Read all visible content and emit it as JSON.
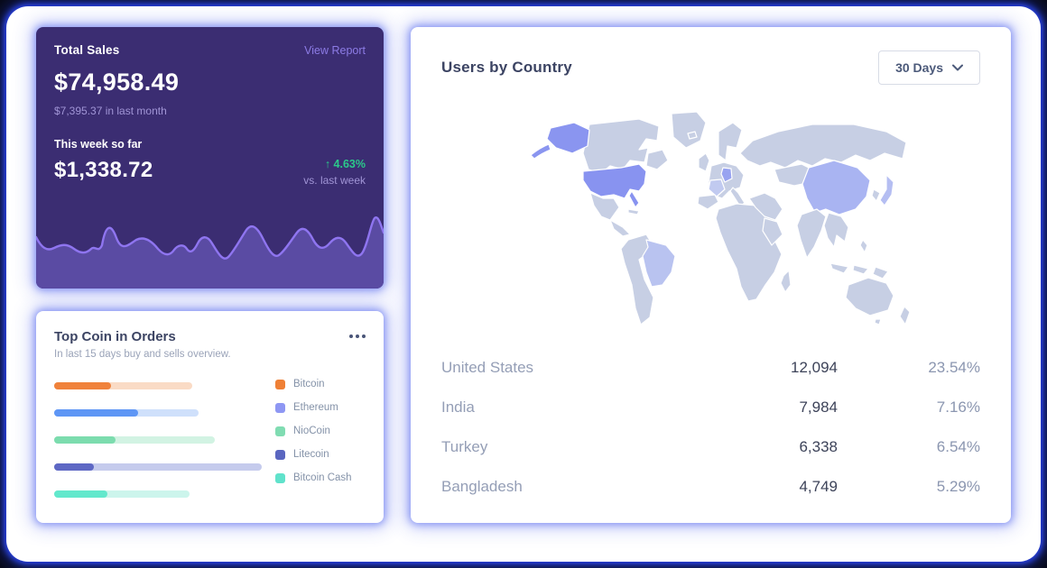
{
  "page": {
    "background": "#06070f",
    "glow_color": "#2b46f0",
    "canvas_background": "#ffffff"
  },
  "sales_card": {
    "title": "Total Sales",
    "view_report": "View Report",
    "total": "$74,958.49",
    "last_month_note": "$7,395.37 in last month",
    "week_label": "This week so far",
    "week_total": "$1,338.72",
    "delta_arrow": "↑",
    "delta": "4.63%",
    "delta_note": "vs. last week",
    "colors": {
      "bg": "#3b2d72",
      "line": "#8f75f0",
      "area": "#5a4ba3",
      "positive": "#2bc98a",
      "muted": "#a195d6",
      "link": "#8d7ce6"
    }
  },
  "coins_card": {
    "title": "Top Coin in Orders",
    "subtitle": "In last 15 days buy and sells overview.",
    "menu_icon": "ellipsis-icon",
    "chart": {
      "type": "bar",
      "orientation": "horizontal",
      "note": "unlabeled progress-style bars; widths measured in px from screenshot",
      "bars": [
        {
          "label": "Bitcoin",
          "fill": "#f0823b",
          "track": "#fadbc5",
          "track_w": 153,
          "fill_w": 63
        },
        {
          "label": "Ethereum",
          "fill": "#5e96f5",
          "track": "#cfe0fb",
          "track_w": 160,
          "fill_w": 93
        },
        {
          "label": "NioCoin",
          "fill": "#7cdcae",
          "track": "#d2f3e3",
          "track_w": 178,
          "fill_w": 68
        },
        {
          "label": "Litecoin",
          "fill": "#5e68c4",
          "track": "#c5cbed",
          "track_w": 230,
          "fill_w": 44
        },
        {
          "label": "Bitcoin Cash",
          "fill": "#62e8cc",
          "track": "#ccf5ec",
          "track_w": 150,
          "fill_w": 59
        }
      ]
    },
    "legend": [
      {
        "label": "Bitcoin",
        "color": "#ef8036"
      },
      {
        "label": "Ethereum",
        "color": "#8e97f3"
      },
      {
        "label": "NioCoin",
        "color": "#80dcb2"
      },
      {
        "label": "Litecoin",
        "color": "#5a66c0"
      },
      {
        "label": "Bitcoin Cash",
        "color": "#60e2cb"
      }
    ]
  },
  "map_card": {
    "title": "Users by Country",
    "range_label": "30 Days",
    "rows": [
      {
        "country": "United States",
        "users": "12,094",
        "share": "23.54%"
      },
      {
        "country": "India",
        "users": "7,984",
        "share": "7.16%"
      },
      {
        "country": "Turkey",
        "users": "6,338",
        "share": "6.54%"
      },
      {
        "country": "Bangladesh",
        "users": "4,749",
        "share": "5.29%"
      }
    ],
    "map_colors": {
      "base": "#c7cfe4",
      "us": "#8893f0",
      "alaska": "#8a95f0",
      "china": "#a9b4f2",
      "brazil": "#b9c3f0",
      "germany": "#98a3f0",
      "france": "#c1caf0",
      "japan": "#b5bef2"
    }
  }
}
